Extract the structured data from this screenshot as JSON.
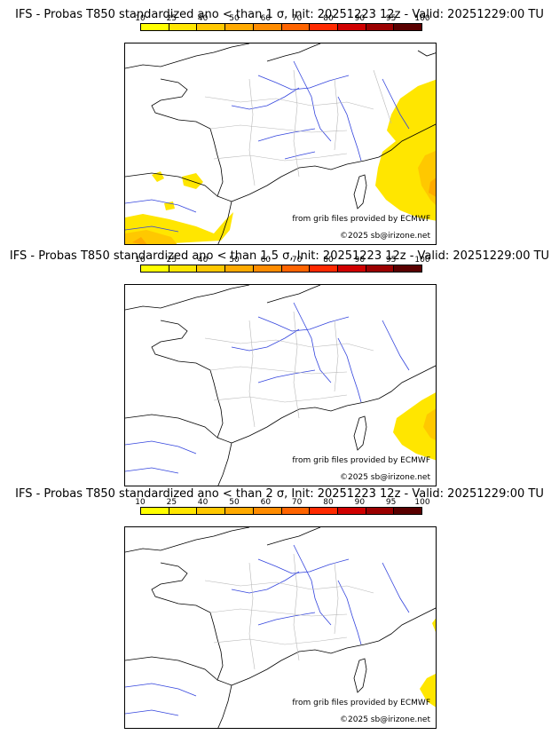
{
  "colorbar": {
    "ticks": [
      "10",
      "25",
      "40",
      "50",
      "60",
      "70",
      "80",
      "90",
      "95",
      "100"
    ],
    "colors": [
      "#ffff00",
      "#ffe600",
      "#ffc800",
      "#ffaa00",
      "#ff8c00",
      "#ff6400",
      "#ff2a00",
      "#d00000",
      "#9b0000",
      "#5a0000"
    ]
  },
  "panels": [
    {
      "title": "IFS - Probas T850  standardized ano < than 1 σ, Init: 20251223 12z - Valid: 20251229:00 TU",
      "credit_source": "from grib files provided by ECMWF",
      "credit_copyright": "©2025 sb@irizone.net"
    },
    {
      "title": "IFS - Probas T850  standardized ano < than 1.5 σ, Init: 20251223 12z - Valid: 20251229:00 TU",
      "credit_source": "from grib files provided by ECMWF",
      "credit_copyright": "©2025 sb@irizone.net"
    },
    {
      "title": "IFS - Probas T850  standardized ano < than 2 σ, Init: 20251223 12z - Valid: 20251229:00 TU",
      "credit_source": "from grib files provided by ECMWF",
      "credit_copyright": "©2025 sb@irizone.net"
    }
  ]
}
